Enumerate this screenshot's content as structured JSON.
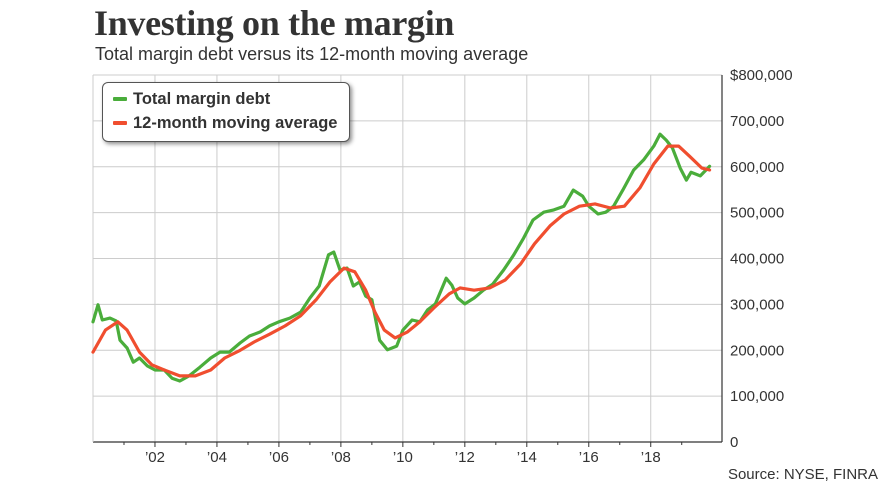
{
  "title": "Investing on the margin",
  "subtitle": "Total margin debt versus its 12-month moving average",
  "source": "Source: NYSE, FINRA",
  "chart_data": {
    "type": "line",
    "title": "Investing on the margin",
    "subtitle": "Total margin debt versus its 12-month moving average",
    "xlabel": "",
    "ylabel": "",
    "xlim": [
      2000.0,
      2020.3
    ],
    "ylim": [
      0,
      800000
    ],
    "grid": true,
    "legend_position": "top-left",
    "y_axis_side": "right",
    "x_ticks": [
      2002,
      2004,
      2006,
      2008,
      2010,
      2012,
      2014,
      2016,
      2018
    ],
    "x_tick_labels": [
      "’02",
      "’04",
      "’06",
      "’08",
      "’10",
      "’12",
      "’14",
      "’16",
      "’18"
    ],
    "y_ticks": [
      0,
      100000,
      200000,
      300000,
      400000,
      500000,
      600000,
      700000,
      800000
    ],
    "y_tick_labels": [
      "0",
      "100,000",
      "200,000",
      "300,000",
      "400,000",
      "500,000",
      "600,000",
      "700,000",
      "$800,000"
    ],
    "series": [
      {
        "name": "Total margin debt",
        "color": "#4aad3b",
        "x": [
          2000.0,
          2000.16,
          2000.3,
          2000.55,
          2000.75,
          2000.87,
          2001.1,
          2001.3,
          2001.5,
          2001.75,
          2002.0,
          2002.3,
          2002.55,
          2002.8,
          2003.1,
          2003.45,
          2003.8,
          2004.1,
          2004.4,
          2004.75,
          2005.05,
          2005.4,
          2005.7,
          2006.0,
          2006.35,
          2006.7,
          2007.0,
          2007.3,
          2007.6,
          2007.77,
          2007.97,
          2008.2,
          2008.4,
          2008.6,
          2008.8,
          2009.0,
          2009.25,
          2009.5,
          2009.8,
          2010.0,
          2010.3,
          2010.55,
          2010.8,
          2011.05,
          2011.4,
          2011.58,
          2011.77,
          2012.0,
          2012.3,
          2012.6,
          2012.9,
          2013.25,
          2013.58,
          2013.9,
          2014.2,
          2014.55,
          2014.87,
          2015.2,
          2015.5,
          2015.8,
          2016.0,
          2016.3,
          2016.55,
          2016.8,
          2017.1,
          2017.45,
          2017.77,
          2018.1,
          2018.3,
          2018.5,
          2018.7,
          2018.95,
          2019.15,
          2019.3,
          2019.6,
          2019.9
        ],
        "values": [
          262000,
          299000,
          266000,
          270000,
          264000,
          222000,
          205000,
          174000,
          183000,
          166000,
          157000,
          157000,
          139000,
          133000,
          144000,
          163000,
          183000,
          196000,
          196000,
          216000,
          231000,
          240000,
          253000,
          262000,
          270000,
          283000,
          314000,
          340000,
          408000,
          414000,
          375000,
          379000,
          340000,
          349000,
          318000,
          310000,
          222000,
          201000,
          209000,
          244000,
          266000,
          262000,
          288000,
          301000,
          357000,
          342000,
          314000,
          301000,
          314000,
          331000,
          344000,
          375000,
          408000,
          445000,
          484000,
          501000,
          506000,
          514000,
          549000,
          536000,
          514000,
          497000,
          501000,
          514000,
          549000,
          593000,
          615000,
          645000,
          671000,
          658000,
          641000,
          597000,
          571000,
          588000,
          580000,
          601000
        ]
      },
      {
        "name": "12-month moving average",
        "color": "#f04e2f",
        "x": [
          2000.0,
          2000.4,
          2000.8,
          2001.1,
          2001.5,
          2001.9,
          2002.3,
          2002.8,
          2003.3,
          2003.8,
          2004.25,
          2004.75,
          2005.2,
          2005.7,
          2006.2,
          2006.7,
          2007.2,
          2007.65,
          2008.1,
          2008.45,
          2008.8,
          2009.1,
          2009.4,
          2009.75,
          2010.15,
          2010.55,
          2011.0,
          2011.5,
          2011.85,
          2012.3,
          2012.8,
          2013.3,
          2013.8,
          2014.25,
          2014.75,
          2015.2,
          2015.7,
          2016.2,
          2016.7,
          2017.15,
          2017.65,
          2018.1,
          2018.55,
          2018.9,
          2019.25,
          2019.65,
          2019.9
        ],
        "values": [
          196000,
          244000,
          262000,
          244000,
          196000,
          168000,
          157000,
          144000,
          144000,
          157000,
          183000,
          200000,
          218000,
          235000,
          253000,
          275000,
          310000,
          349000,
          379000,
          371000,
          331000,
          283000,
          244000,
          227000,
          240000,
          262000,
          292000,
          323000,
          336000,
          331000,
          336000,
          353000,
          388000,
          432000,
          471000,
          497000,
          514000,
          519000,
          510000,
          514000,
          554000,
          606000,
          645000,
          645000,
          623000,
          597000,
          593000
        ]
      }
    ]
  },
  "legend": {
    "items": [
      {
        "label": "Total margin debt",
        "color": "#4aad3b"
      },
      {
        "label": "12-month moving average",
        "color": "#f04e2f"
      }
    ]
  },
  "colors": {
    "grid": "#cccccc",
    "axis": "#333333",
    "text": "#333333"
  }
}
